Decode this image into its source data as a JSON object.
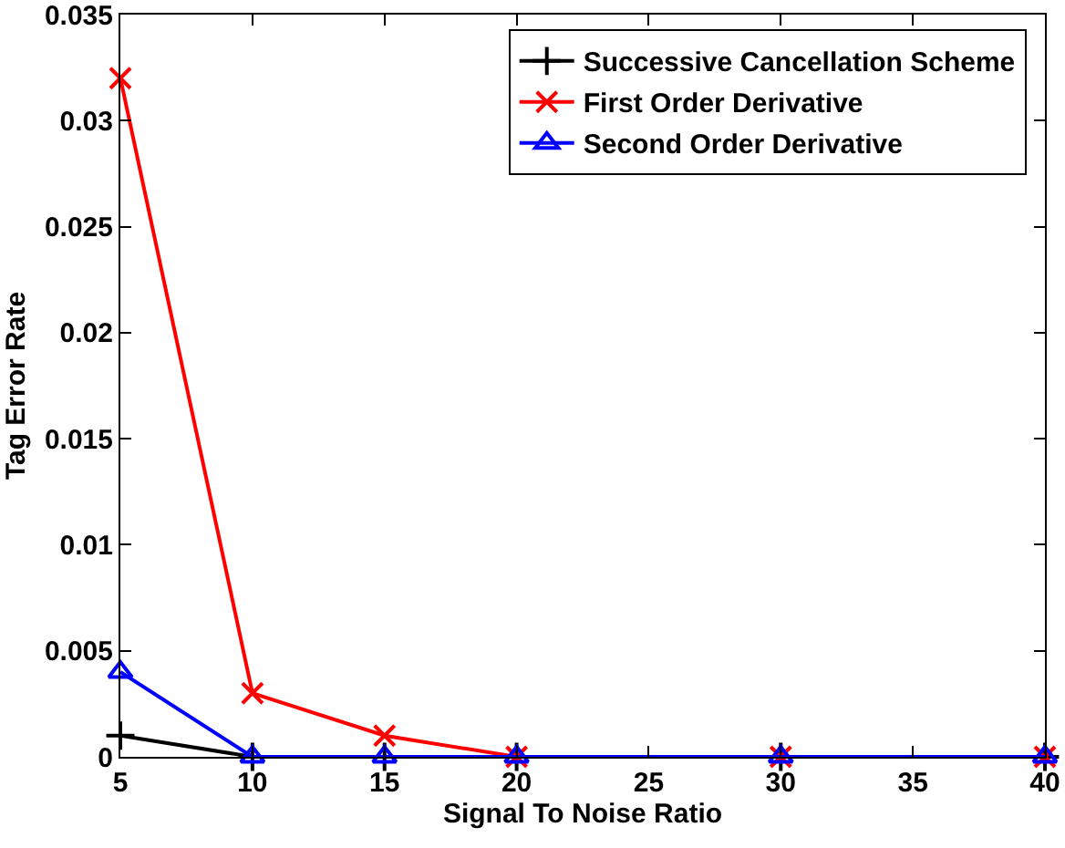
{
  "chart_data": {
    "type": "line",
    "xlabel": "Signal To Noise Ratio",
    "ylabel": "Tag Error Rate",
    "x": [
      5,
      10,
      15,
      20,
      30,
      40
    ],
    "series": [
      {
        "name": "Successive Cancellation Scheme",
        "color": "#000000",
        "marker": "cross",
        "values": [
          0.001,
          0,
          0,
          0,
          0,
          0
        ]
      },
      {
        "name": "First Order Derivative",
        "color": "#ff0000",
        "marker": "x",
        "values": [
          0.032,
          0.003,
          0.001,
          0,
          0,
          0
        ]
      },
      {
        "name": "Second Order Derivative",
        "color": "#0000ff",
        "marker": "triangle",
        "values": [
          0.004,
          0,
          0,
          0,
          0,
          0
        ]
      }
    ],
    "xlim": [
      5,
      40
    ],
    "xticks": [
      5,
      10,
      15,
      20,
      25,
      30,
      35,
      40
    ],
    "ylim": [
      0,
      0.035
    ],
    "yticks": [
      0,
      0.005,
      0.01,
      0.015,
      0.02,
      0.025,
      0.03,
      0.035
    ],
    "grid": false,
    "legend": "top right",
    "line_style": "solid"
  }
}
